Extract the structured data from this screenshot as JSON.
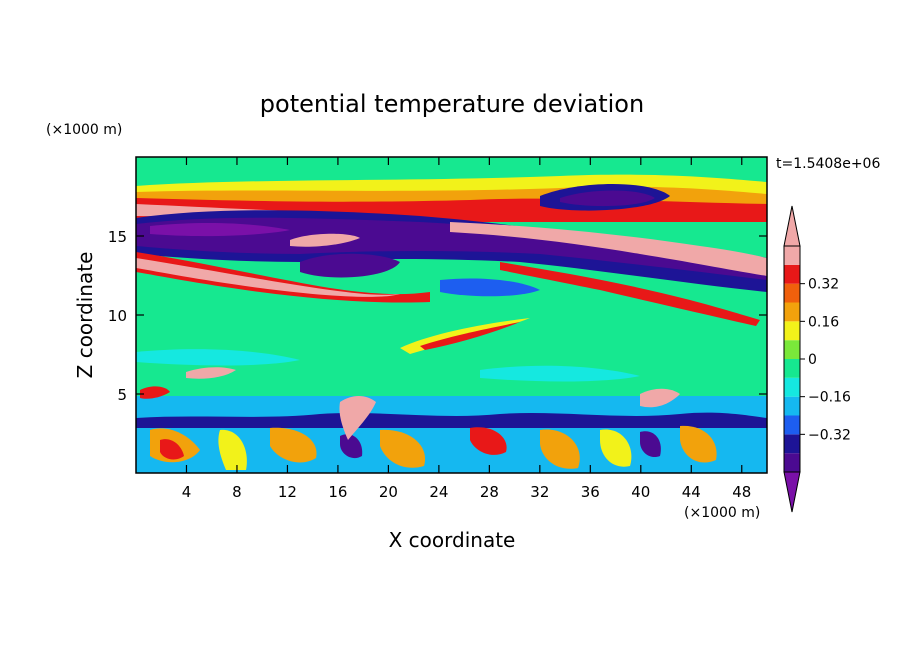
{
  "chart_data": {
    "type": "heatmap",
    "title": "potential temperature deviation",
    "xlabel": "X coordinate",
    "ylabel": "Z coordinate",
    "x_unit": "(×1000 m)",
    "y_unit": "(×1000 m)",
    "time_label": "t=1.5408e+06",
    "xlim": [
      0,
      50
    ],
    "ylim": [
      0,
      20
    ],
    "x_ticks": [
      4,
      8,
      12,
      16,
      20,
      24,
      28,
      32,
      36,
      40,
      44,
      48
    ],
    "y_ticks": [
      5,
      10,
      15
    ],
    "colorbar": {
      "levels": [
        -0.48,
        -0.4,
        -0.32,
        -0.24,
        -0.16,
        -0.08,
        0,
        0.08,
        0.16,
        0.24,
        0.32,
        0.4,
        0.48
      ],
      "labels": [
        "0.32",
        "0.16",
        "0",
        "-0.16",
        "-0.32"
      ],
      "label_values": [
        0.32,
        0.16,
        0,
        -0.16,
        -0.32
      ],
      "colors": [
        "#7a10a8",
        "#4b0a91",
        "#1d1496",
        "#1d5ef0",
        "#15b8f0",
        "#15e8e0",
        "#16e890",
        "#7ae83a",
        "#f2f21a",
        "#f2a20c",
        "#f0600c",
        "#e81818",
        "#f0a8a8"
      ],
      "extend": "both"
    }
  }
}
